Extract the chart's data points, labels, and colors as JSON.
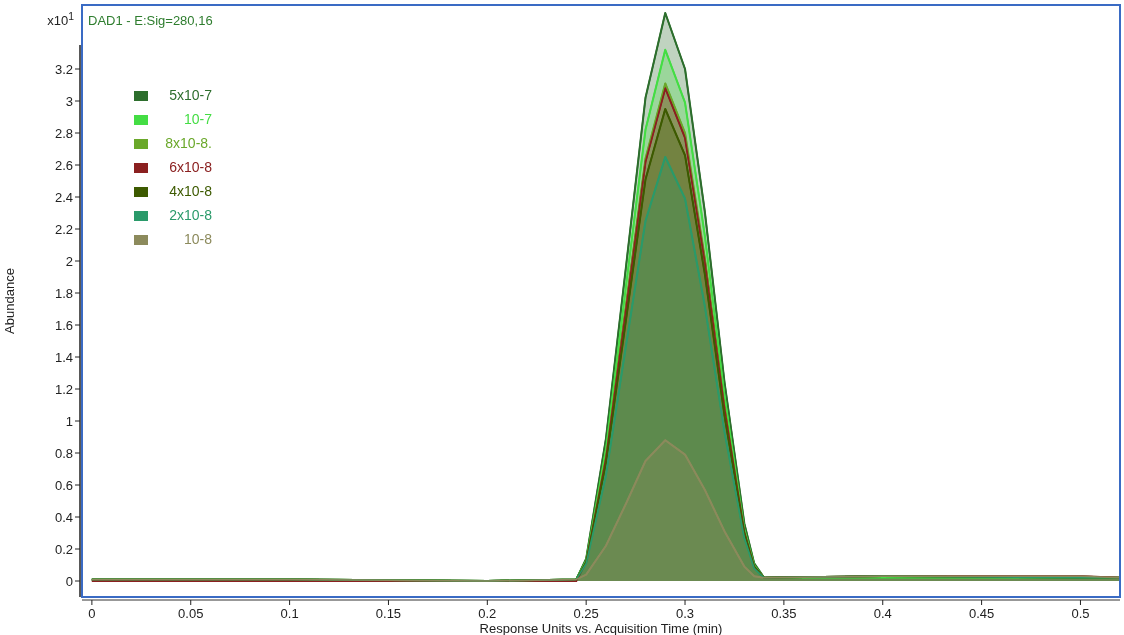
{
  "chart_data": {
    "type": "area",
    "title": "DAD1 - E:Sig=280,16",
    "xlabel": "Response Units vs. Acquisition Time (min)",
    "ylabel": "Abundance",
    "annotations": [
      "x10$^{1}$"
    ],
    "x": [
      0,
      0.1,
      0.2,
      0.245,
      0.25,
      0.26,
      0.27,
      0.28,
      0.29,
      0.3,
      0.31,
      0.32,
      0.33,
      0.335,
      0.34,
      0.4,
      0.5,
      0.52
    ],
    "series": [
      {
        "name": "5x10-7",
        "color": "#2d6e2d",
        "values": [
          0.01,
          0.01,
          0,
          0.01,
          0.14,
          0.89,
          1.95,
          3.02,
          3.55,
          3.2,
          2.31,
          1.24,
          0.36,
          0.11,
          0.02,
          0.03,
          0.02,
          0.02
        ]
      },
      {
        "name": "10-7",
        "color": "#44dd44",
        "values": [
          0.01,
          0.01,
          0,
          0.01,
          0.13,
          0.83,
          1.83,
          2.82,
          3.32,
          2.99,
          2.16,
          1.16,
          0.33,
          0.1,
          0.02,
          0.02,
          0.02,
          0.02
        ]
      },
      {
        "name": "8x10-8.",
        "color": "#6aa82a",
        "values": [
          0.01,
          0.01,
          0,
          0.01,
          0.12,
          0.78,
          1.71,
          2.64,
          3.11,
          2.8,
          2.02,
          1.09,
          0.31,
          0.09,
          0.02,
          0.03,
          0.02,
          0.02
        ]
      },
      {
        "name": "6x10-8",
        "color": "#8b2020",
        "values": [
          0,
          0,
          0,
          0,
          0.12,
          0.77,
          1.69,
          2.62,
          3.08,
          2.77,
          2,
          1.08,
          0.31,
          0.09,
          0.02,
          0.03,
          0.03,
          0.02
        ]
      },
      {
        "name": "4x10-8",
        "color": "#3d5a00",
        "values": [
          0.01,
          0.01,
          0,
          0.01,
          0.12,
          0.74,
          1.62,
          2.51,
          2.95,
          2.66,
          1.92,
          1.03,
          0.3,
          0.09,
          0.02,
          0.03,
          0.02,
          0.02
        ]
      },
      {
        "name": "2x10-8",
        "color": "#2a9a6a",
        "values": [
          0.01,
          0.01,
          0,
          0.01,
          0.11,
          0.66,
          1.46,
          2.25,
          2.65,
          2.39,
          1.72,
          0.93,
          0.27,
          0.08,
          0.02,
          0.03,
          0.02,
          0.02
        ]
      },
      {
        "name": "10-8",
        "color": "#8c8a5c",
        "values": [
          0.01,
          0.01,
          0,
          0.01,
          0.04,
          0.22,
          0.48,
          0.75,
          0.88,
          0.79,
          0.57,
          0.31,
          0.09,
          0.03,
          0.02,
          0.03,
          0.03,
          0.02
        ]
      }
    ],
    "xlim": [
      -0.005,
      0.52
    ],
    "xticks": [
      0,
      0.05,
      0.1,
      0.15,
      0.2,
      0.25,
      0.3,
      0.35,
      0.4,
      0.45,
      0.5
    ],
    "ylim": [
      -0.1,
      3.6
    ],
    "yticks": [
      0,
      0.2,
      0.4,
      0.6,
      0.8,
      1,
      1.2,
      1.4,
      1.6,
      1.8,
      2,
      2.2,
      2.4,
      2.6,
      2.8,
      3,
      3.2
    ],
    "legend": "top left",
    "grid": false
  }
}
